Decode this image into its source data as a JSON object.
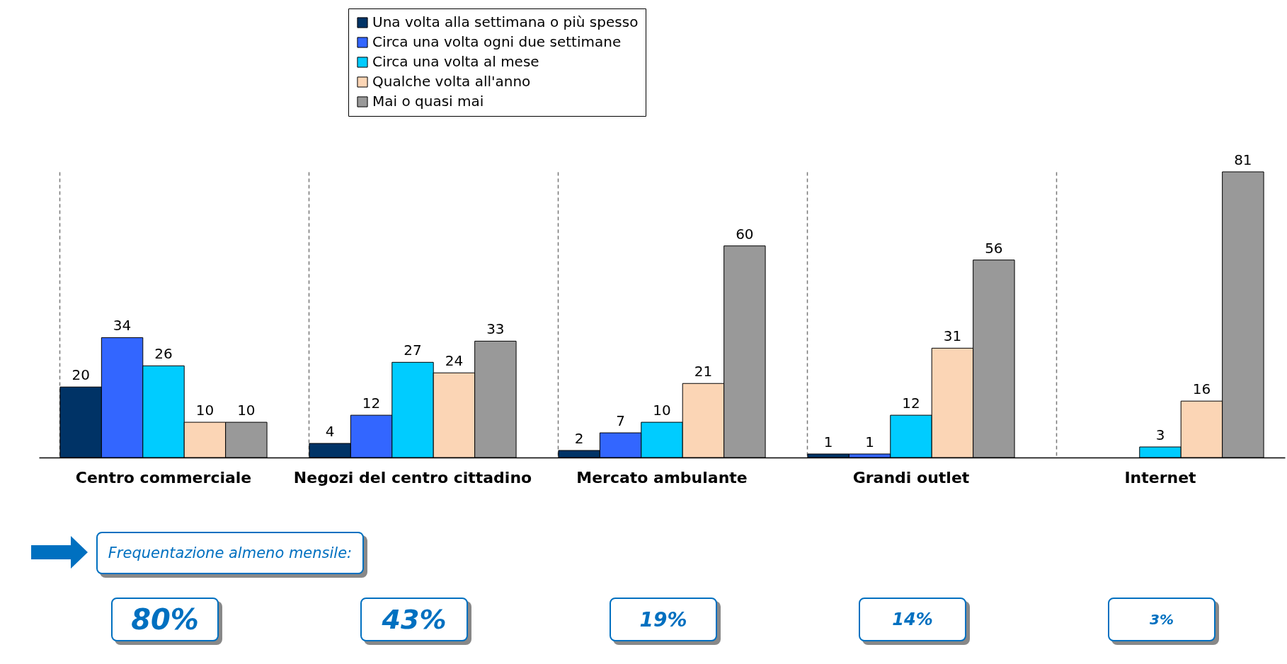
{
  "chart_data": {
    "type": "bar",
    "categories": [
      "Centro commerciale",
      "Negozi del centro cittadino",
      "Mercato ambulante",
      "Grandi outlet",
      "Internet"
    ],
    "series": [
      {
        "name": "Una volta alla settimana o più spesso",
        "color": "#003366",
        "values": [
          20,
          4,
          2,
          1,
          null
        ]
      },
      {
        "name": "Circa una volta ogni due settimane",
        "color": "#3366ff",
        "values": [
          34,
          12,
          7,
          1,
          null
        ]
      },
      {
        "name": "Circa una volta al mese",
        "color": "#00ccff",
        "values": [
          26,
          27,
          10,
          12,
          3
        ]
      },
      {
        "name": "Qualche volta all'anno",
        "color": "#fbd5b5",
        "values": [
          10,
          24,
          21,
          31,
          16
        ]
      },
      {
        "name": "Mai o quasi mai",
        "color": "#999999",
        "values": [
          10,
          33,
          60,
          56,
          81
        ]
      }
    ],
    "data_labels": true,
    "legend": "top",
    "grid": "x",
    "annotations": [
      "Frequentazione almeno mensile:",
      "80%",
      "43%",
      "19%",
      "14%",
      "3%"
    ]
  }
}
